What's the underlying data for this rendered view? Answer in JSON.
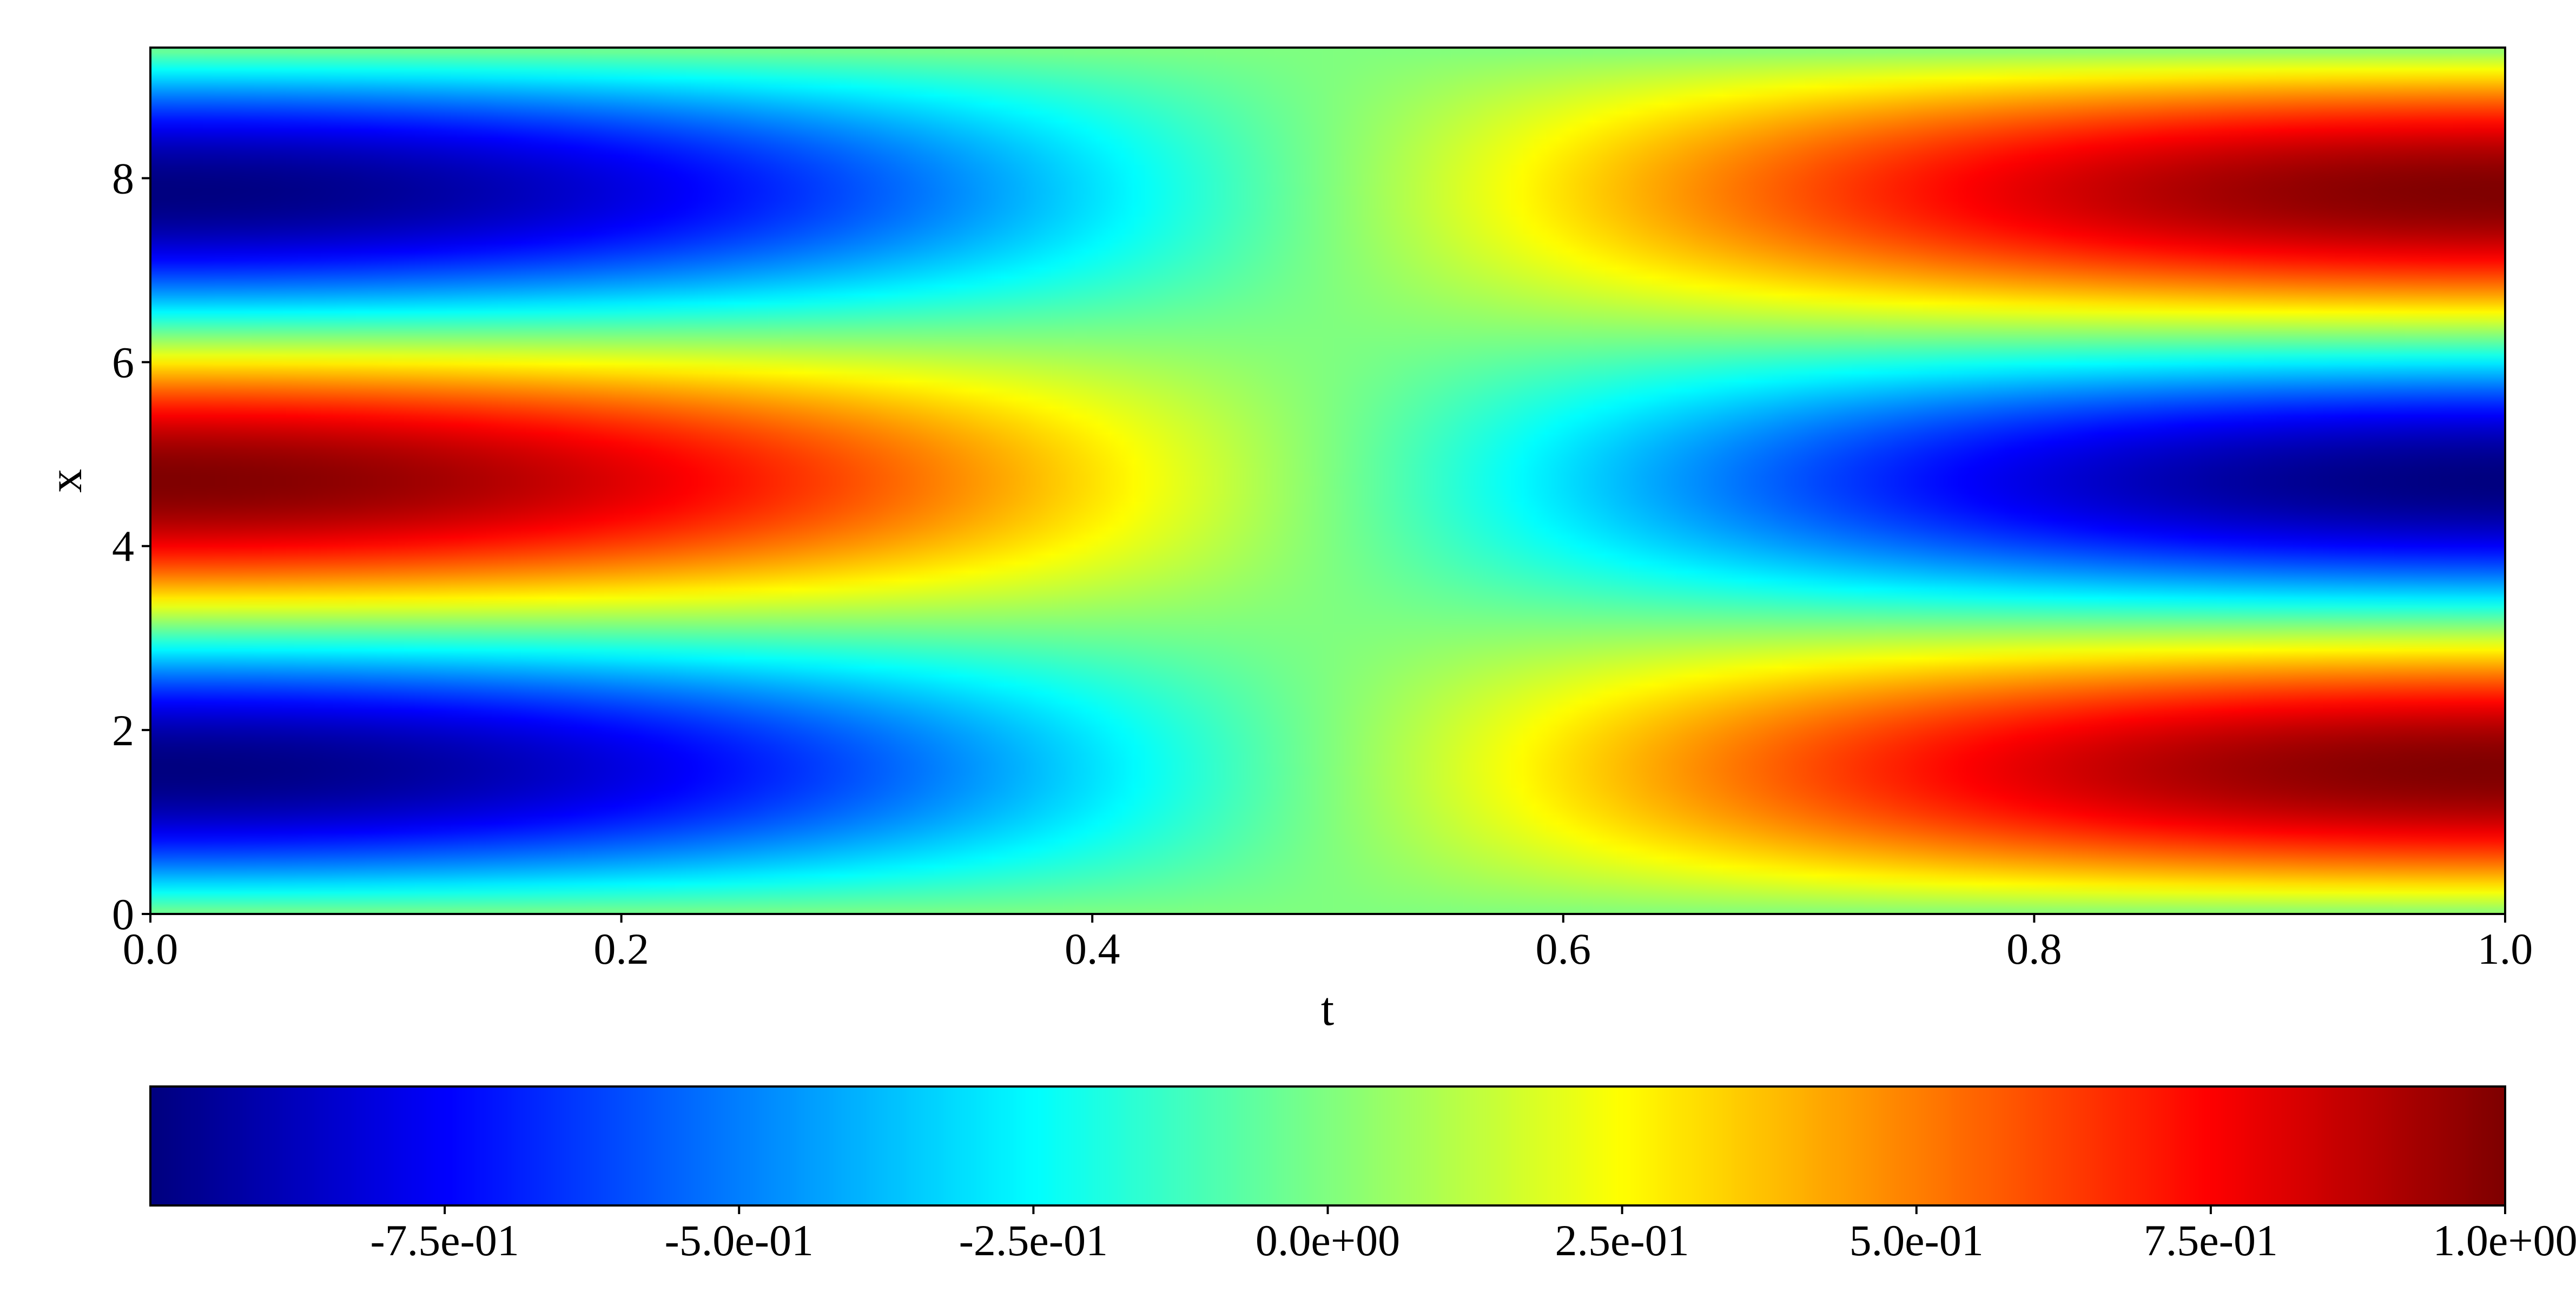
{
  "chart_data": {
    "type": "heatmap",
    "title": "",
    "xlabel": "t",
    "ylabel": "x",
    "xlim": [
      0.0,
      1.0
    ],
    "ylim": [
      0.0,
      9.42
    ],
    "x_ticks": [
      0.0,
      0.2,
      0.4,
      0.6,
      0.8,
      1.0
    ],
    "x_tick_labels": [
      "0.0",
      "0.2",
      "0.4",
      "0.6",
      "0.8",
      "1.0"
    ],
    "y_ticks": [
      0,
      2,
      4,
      6,
      8
    ],
    "y_tick_labels": [
      "0",
      "2",
      "4",
      "6",
      "8"
    ],
    "colormap": "jet",
    "value_range": [
      -1.0,
      1.0
    ],
    "field": "-sin(x) * cos(pi * t)",
    "colorbar": {
      "orientation": "horizontal",
      "location": "bottom",
      "ticks": [
        -0.75,
        -0.5,
        -0.25,
        0.0,
        0.25,
        0.5,
        0.75,
        1.0
      ],
      "tick_labels": [
        "-7.5e-01",
        "-5.0e-01",
        "-2.5e-01",
        "0.0e+00",
        "2.5e-01",
        "5.0e-01",
        "7.5e-01",
        "1.0e+00"
      ]
    }
  }
}
